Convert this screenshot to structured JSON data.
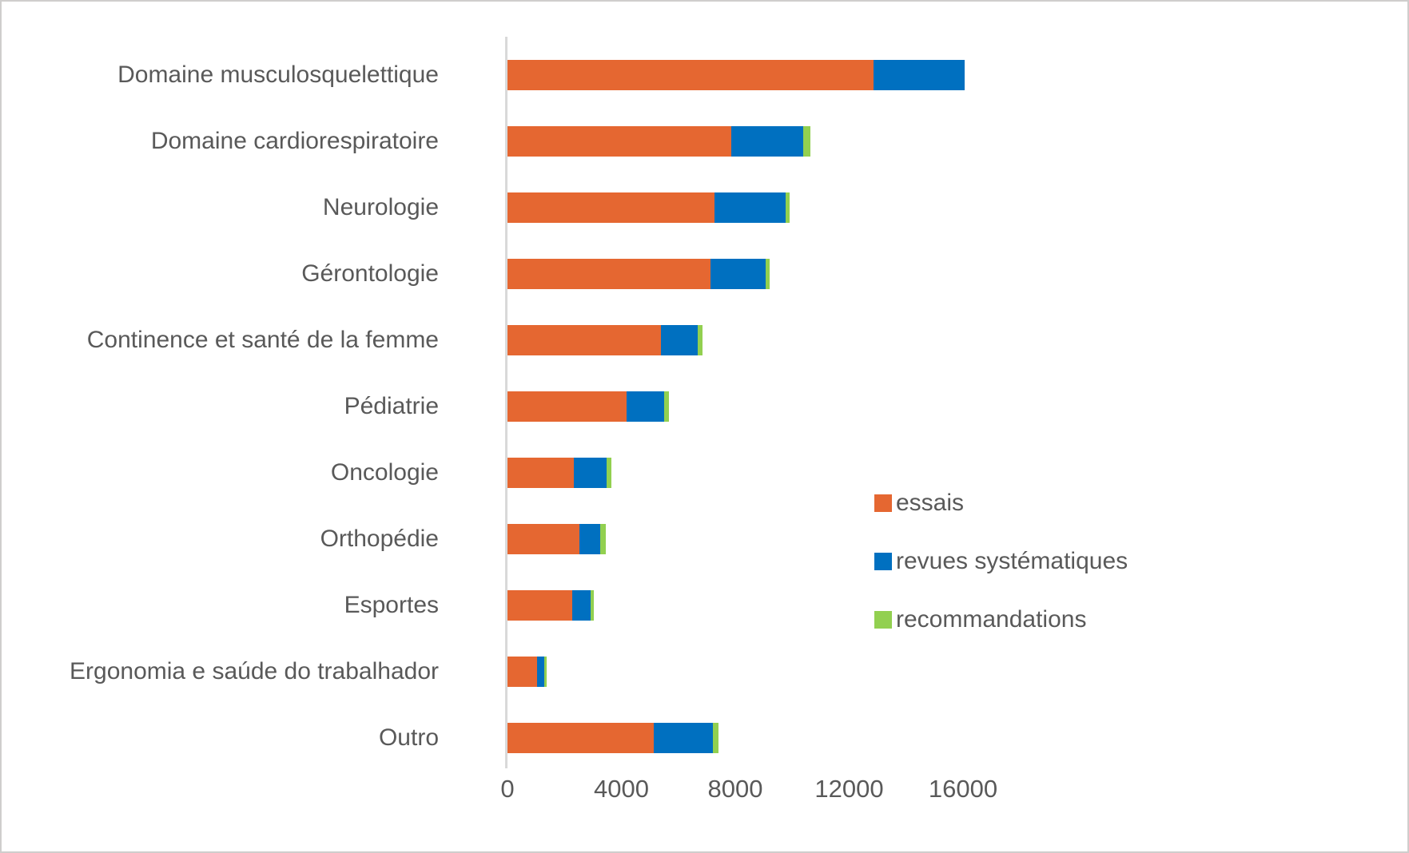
{
  "chart_data": {
    "type": "bar",
    "orientation": "horizontal",
    "stacked": true,
    "title": "",
    "xlabel": "",
    "ylabel": "",
    "grid": false,
    "legend_position": "right",
    "categories": [
      "Domaine musculosquelettique",
      "Domaine cardiorespiratoire",
      "Neurologie",
      "Gérontologie",
      "Continence et santé de la femme",
      "Pédiatrie",
      "Oncologie",
      "Orthopédie",
      "Esportes",
      "Ergonomia e saúde do trabalhador",
      "Outro"
    ],
    "series": [
      {
        "name": "essais",
        "color": "#e56731",
        "values": [
          12850,
          7870,
          7280,
          7140,
          5400,
          4170,
          2320,
          2520,
          2270,
          1040,
          5150
        ]
      },
      {
        "name": "revues systématiques",
        "color": "#0070c0",
        "values": [
          3200,
          2520,
          2490,
          1930,
          1290,
          1320,
          1150,
          730,
          640,
          250,
          2050
        ]
      },
      {
        "name": "recommandations",
        "color": "#92d050",
        "values": [
          0,
          250,
          140,
          140,
          170,
          170,
          170,
          200,
          110,
          80,
          200
        ]
      }
    ],
    "x_ticks": [
      0,
      4000,
      8000,
      12000,
      16000
    ],
    "xlim": [
      0,
      16300
    ]
  },
  "colors": {
    "text": "#595959",
    "axis_line": "#d9d9d9",
    "background": "#ffffff",
    "border": "#cfcecd"
  }
}
